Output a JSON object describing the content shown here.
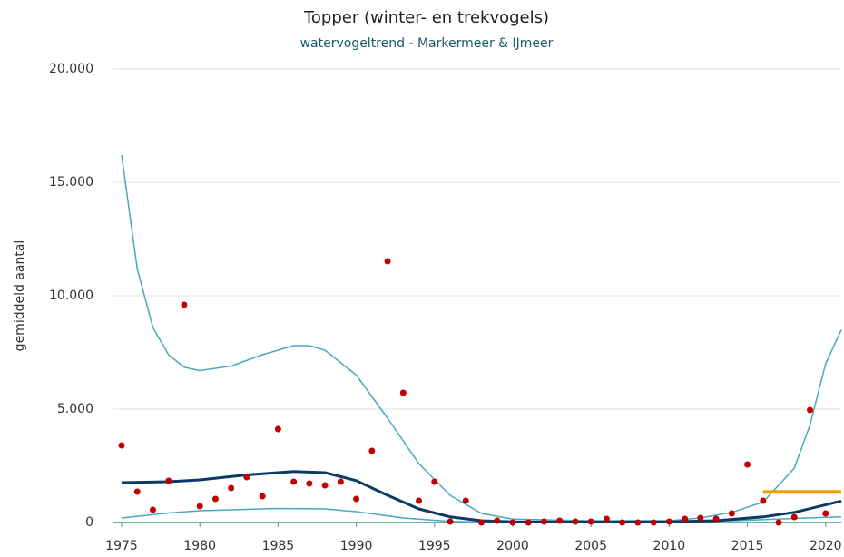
{
  "chart_data": {
    "type": "line",
    "title": "Topper (winter- en trekvogels)",
    "subtitle": "watervogeltrend - Markermeer & IJmeer",
    "y_label": "gemiddeld aantal",
    "xlim": [
      1975,
      2021
    ],
    "xticks": [
      1975,
      1980,
      1985,
      1990,
      1995,
      2000,
      2005,
      2010,
      2015,
      2020
    ],
    "ylim": [
      0,
      20000
    ],
    "yticks": [
      0,
      {
        "value": 5000,
        "label": "5.000"
      },
      {
        "value": 10000,
        "label": "10.000"
      },
      {
        "value": 15000,
        "label": "15.000"
      },
      {
        "value": 20000,
        "label": "20.000"
      }
    ],
    "grid": true,
    "series": [
      {
        "type": "line",
        "color": "#4aa8c0",
        "width": 1.5,
        "x": [
          1975,
          1976,
          1977,
          1978,
          1979,
          1980,
          1982,
          1984,
          1986,
          1987,
          1988,
          1990,
          1992,
          1994,
          1996,
          1998,
          2000,
          2005,
          2010,
          2012,
          2014,
          2016,
          2018,
          2019,
          2020,
          2021
        ],
        "values": [
          16200,
          11200,
          8600,
          7400,
          6850,
          6700,
          6900,
          7400,
          7800,
          7800,
          7600,
          6500,
          4600,
          2600,
          1200,
          400,
          150,
          80,
          80,
          200,
          450,
          900,
          2400,
          4300,
          7000,
          8500
        ]
      },
      {
        "type": "line",
        "color": "#4aa8c0",
        "width": 1.5,
        "x": [
          1975,
          1978,
          1980,
          1985,
          1988,
          1990,
          1993,
          1996,
          2000,
          2010,
          2015,
          2018,
          2021
        ],
        "values": [
          200,
          420,
          520,
          620,
          600,
          480,
          200,
          50,
          10,
          10,
          100,
          180,
          250
        ]
      },
      {
        "type": "line",
        "color": "#0b3a66",
        "width": 3,
        "x": [
          1975,
          1978,
          1980,
          1983,
          1986,
          1988,
          1990,
          1992,
          1994,
          1996,
          1998,
          2000,
          2005,
          2010,
          2013,
          2016,
          2018,
          2021
        ],
        "values": [
          1760,
          1800,
          1880,
          2100,
          2250,
          2200,
          1850,
          1200,
          600,
          250,
          80,
          30,
          20,
          30,
          80,
          250,
          450,
          950
        ]
      },
      {
        "type": "line",
        "color": "#f0a000",
        "width": 4,
        "x": [
          2016,
          2021
        ],
        "values": [
          1350,
          1350
        ]
      },
      {
        "type": "scatter",
        "color": "#c00000",
        "x": [
          1975,
          1976,
          1977,
          1978,
          1979,
          1980,
          1981,
          1982,
          1983,
          1984,
          1985,
          1986,
          1987,
          1988,
          1989,
          1990,
          1991,
          1992,
          1993,
          1994,
          1995,
          1996,
          1997,
          1998,
          1999,
          2000,
          2001,
          2002,
          2003,
          2004,
          2005,
          2006,
          2007,
          2008,
          2009,
          2010,
          2011,
          2012,
          2013,
          2014,
          2015,
          2016,
          2017,
          2018,
          2019,
          2020
        ],
        "values": [
          3400,
          1360,
          560,
          1840,
          9600,
          720,
          1040,
          1520,
          2000,
          1160,
          4120,
          1800,
          1720,
          1640,
          1800,
          1040,
          3160,
          11520,
          5720,
          960,
          1800,
          40,
          960,
          0,
          80,
          0,
          0,
          40,
          80,
          40,
          40,
          160,
          0,
          0,
          0,
          40,
          160,
          200,
          160,
          400,
          2560,
          960,
          0,
          240,
          4960,
          400
        ]
      }
    ]
  }
}
